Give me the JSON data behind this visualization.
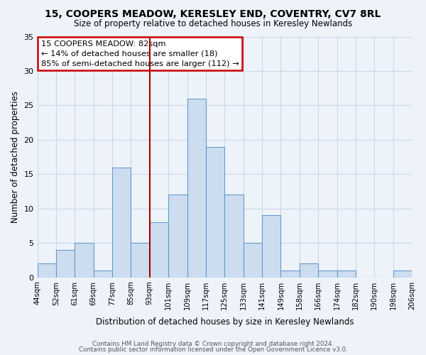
{
  "title": "15, COOPERS MEADOW, KERESLEY END, COVENTRY, CV7 8RL",
  "subtitle": "Size of property relative to detached houses in Keresley Newlands",
  "xlabel": "Distribution of detached houses by size in Keresley Newlands",
  "ylabel": "Number of detached properties",
  "bin_counts": [
    2,
    4,
    5,
    1,
    16,
    5,
    8,
    12,
    26,
    19,
    12,
    5,
    9,
    1,
    2,
    1,
    1,
    0,
    0,
    1
  ],
  "tick_labels": [
    "44sqm",
    "52sqm",
    "61sqm",
    "69sqm",
    "77sqm",
    "85sqm",
    "93sqm",
    "101sqm",
    "109sqm",
    "117sqm",
    "125sqm",
    "133sqm",
    "141sqm",
    "149sqm",
    "158sqm",
    "166sqm",
    "174sqm",
    "182sqm",
    "190sqm",
    "198sqm",
    "206sqm"
  ],
  "bar_color": "#ccddf0",
  "bar_edge_color": "#6699cc",
  "property_line_x": 6,
  "property_line_color": "#aa0000",
  "annotation_title": "15 COOPERS MEADOW: 82sqm",
  "annotation_line1": "← 14% of detached houses are smaller (18)",
  "annotation_line2": "85% of semi-detached houses are larger (112) →",
  "annotation_box_color": "white",
  "annotation_box_edge": "#cc0000",
  "ylim": [
    0,
    35
  ],
  "yticks": [
    0,
    5,
    10,
    15,
    20,
    25,
    30,
    35
  ],
  "footer_line1": "Contains HM Land Registry data © Crown copyright and database right 2024.",
  "footer_line2": "Contains public sector information licensed under the Open Government Licence v3.0.",
  "background_color": "#eef3fa",
  "grid_color": "#c8d8eb"
}
